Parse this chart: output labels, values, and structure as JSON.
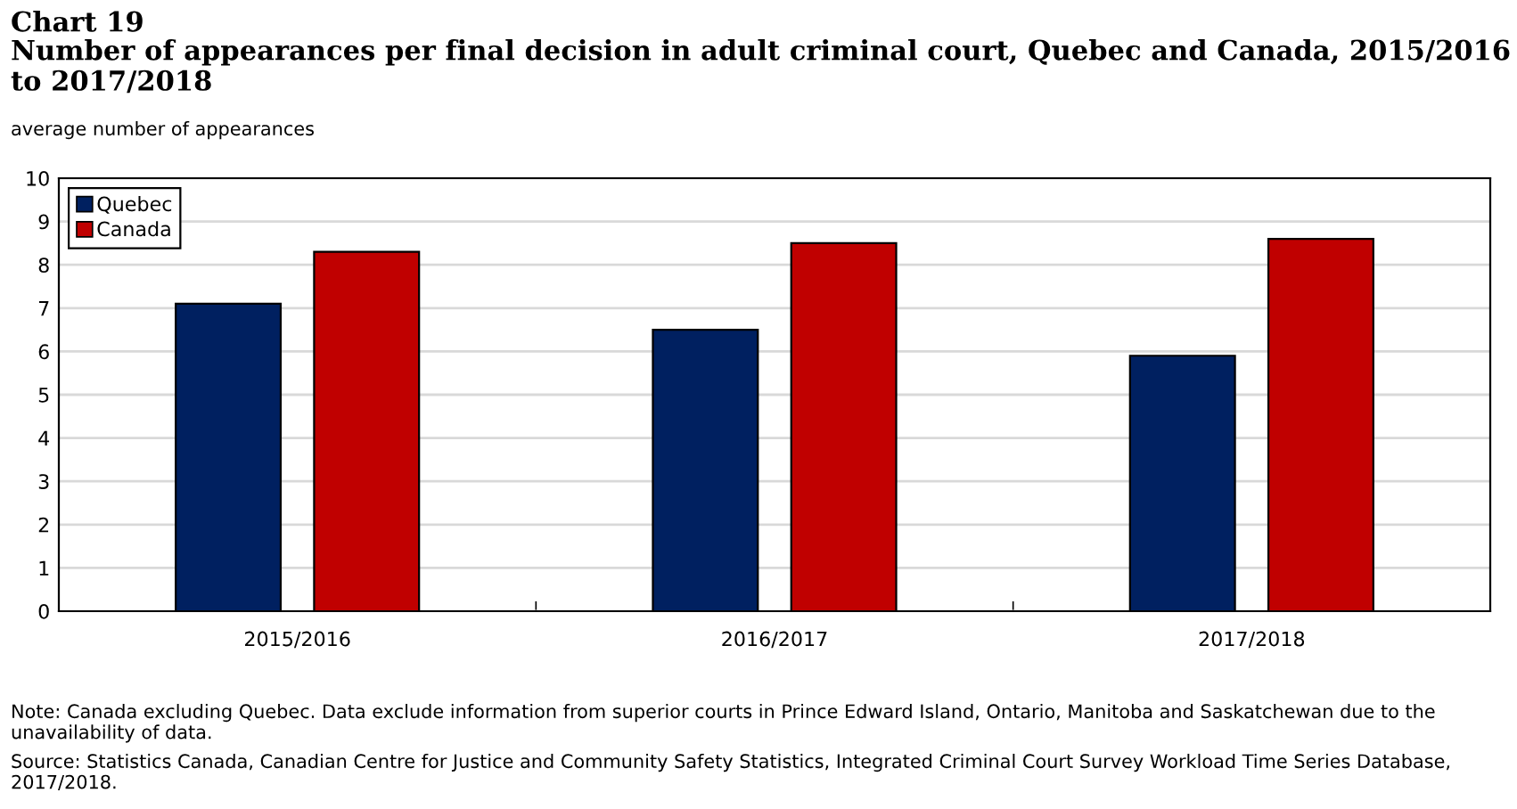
{
  "chart_data": {
    "type": "bar",
    "title": "Chart 19",
    "subtitle": "Number of appearances per final decision in adult criminal court, Quebec and Canada, 2015/2016 to 2017/2018",
    "ylabel": "average number of appearances",
    "categories": [
      "2015/2016",
      "2016/2017",
      "2017/2018"
    ],
    "series": [
      {
        "name": "Quebec",
        "color": "#002060",
        "values": [
          7.1,
          6.5,
          5.9
        ]
      },
      {
        "name": "Canada",
        "color": "#c00000",
        "values": [
          8.3,
          8.5,
          8.6
        ]
      }
    ],
    "ylim": [
      0,
      10
    ],
    "yticks": [
      0,
      1,
      2,
      3,
      4,
      5,
      6,
      7,
      8,
      9,
      10
    ],
    "grid": "y",
    "legend": "top left",
    "annotations": [
      "Note: Canada excluding Quebec. Data exclude information from superior courts in Prince Edward Island, Ontario, Manitoba and Saskatchewan due to the unavailability of data.",
      "Source: Statistics Canada, Canadian Centre for Justice and Community Safety Statistics, Integrated Criminal Court Survey Workload Time Series Database, 2017/2018."
    ]
  }
}
